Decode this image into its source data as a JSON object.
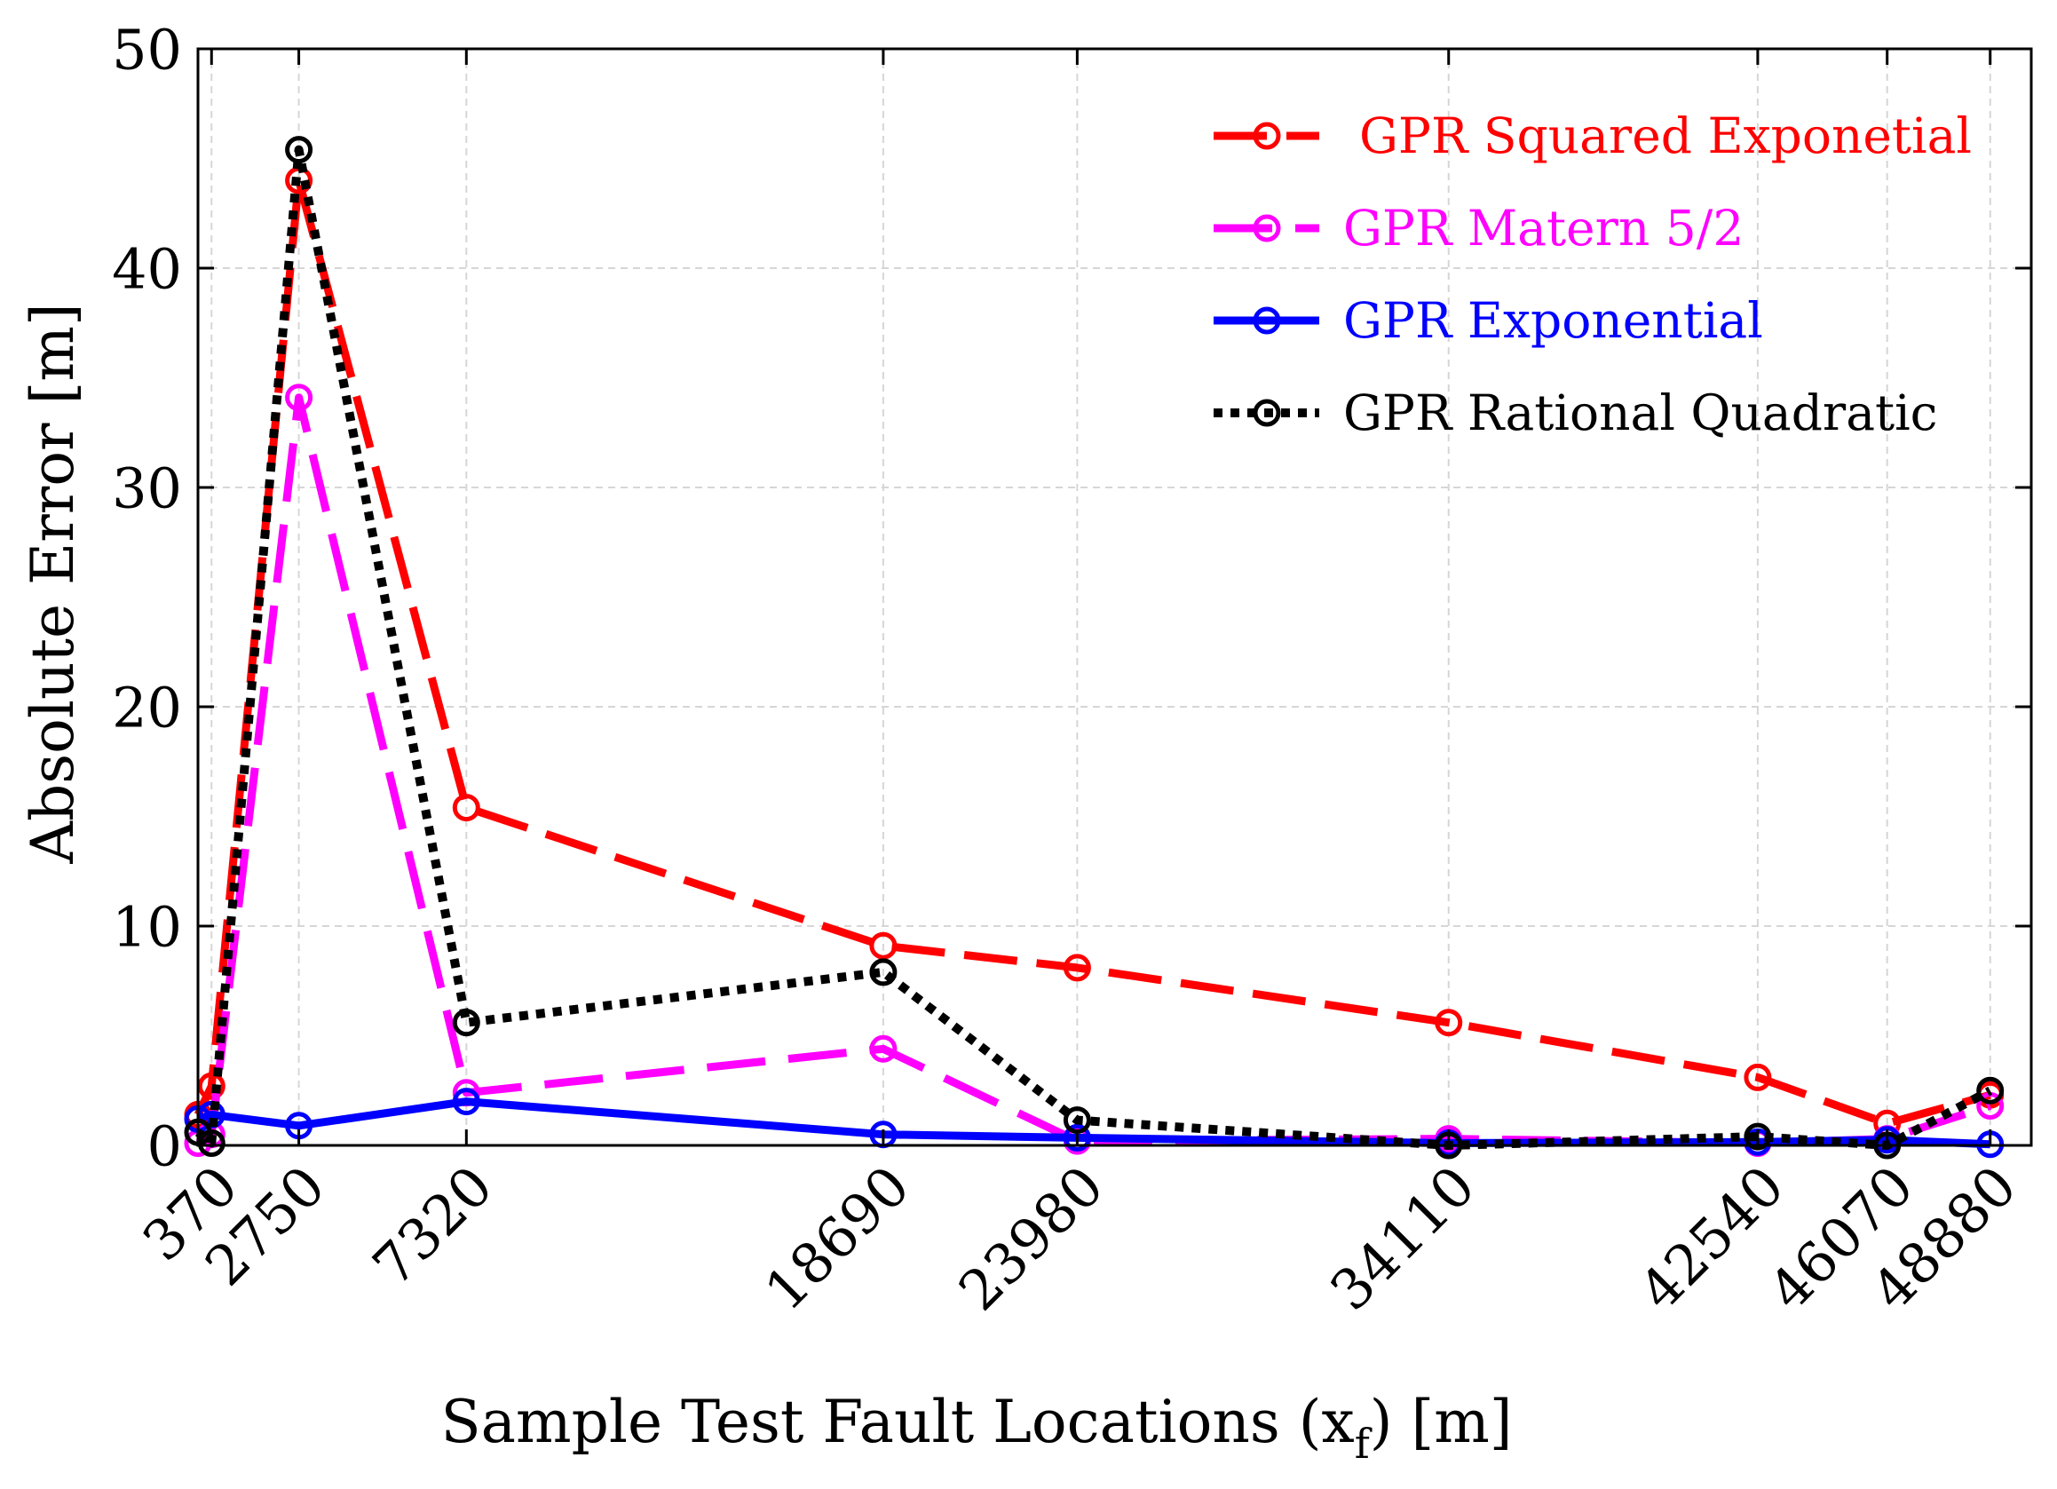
{
  "chart_data": {
    "type": "line",
    "xlabel": {
      "text": "Sample Test Fault Locations (x",
      "sub": "f",
      "tail": ") [m]"
    },
    "ylabel": "Absolute Error [m]",
    "xlim": [
      0,
      50000
    ],
    "ylim": [
      0,
      50
    ],
    "xticks": [
      370,
      2750,
      7320,
      18690,
      23980,
      34110,
      42540,
      46070,
      48880
    ],
    "xtick_labels": [
      "370",
      "2750",
      "7320",
      "18690",
      "23980",
      "34110",
      "42540",
      "46070",
      "48880"
    ],
    "yticks": [
      0,
      10,
      20,
      30,
      40,
      50
    ],
    "ytick_labels": [
      "0",
      "10",
      "20",
      "30",
      "40",
      "50"
    ],
    "grid": true,
    "legend": "top-right",
    "series": [
      {
        "name": "GPR Squared Exponetial",
        "color": "#ff0000",
        "x": [
          0,
          370,
          2750,
          7320,
          18690,
          23980,
          34110,
          42540,
          46070,
          48880
        ],
        "y": [
          1.4,
          2.7,
          44.0,
          15.4,
          9.1,
          8.1,
          5.6,
          3.1,
          1.0,
          2.3
        ]
      },
      {
        "name": "GPR Matern 5/2",
        "color": "#ff00ff",
        "x": [
          0,
          370,
          2750,
          7320,
          18690,
          23980,
          34110,
          42540,
          46070,
          48880
        ],
        "y": [
          0.1,
          0.5,
          34.1,
          2.4,
          4.4,
          0.2,
          0.3,
          0.1,
          0.3,
          1.8
        ]
      },
      {
        "name": "GPR Exponential",
        "color": "#0000ff",
        "x": [
          0,
          370,
          2750,
          7320,
          18690,
          23980,
          34110,
          42540,
          46070,
          48880
        ],
        "y": [
          1.2,
          1.4,
          0.9,
          2.0,
          0.5,
          0.35,
          0.1,
          0.15,
          0.25,
          0.05
        ]
      },
      {
        "name": "GPR Rational Quadratic",
        "color": "#000000",
        "x": [
          0,
          370,
          2750,
          7320,
          18690,
          23980,
          34110,
          42540,
          46070,
          48880
        ],
        "y": [
          0.6,
          0.1,
          45.4,
          5.6,
          7.9,
          1.15,
          0.0,
          0.4,
          0.0,
          2.5
        ]
      }
    ]
  }
}
